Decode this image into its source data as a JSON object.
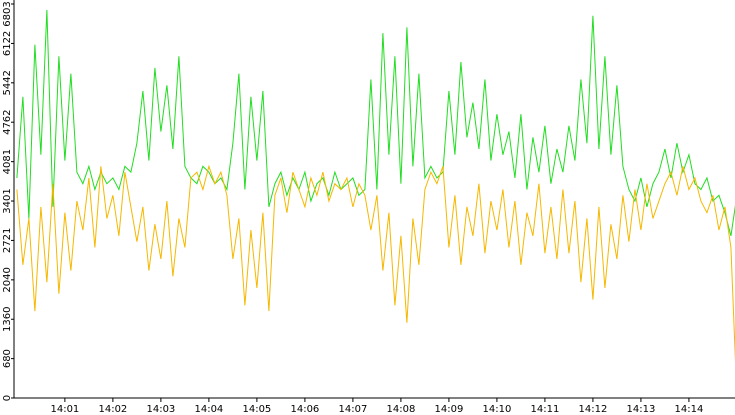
{
  "chart_data": {
    "type": "line",
    "x": [
      840,
      840.125,
      840.25,
      840.375,
      840.5,
      840.625,
      840.75,
      840.875,
      841,
      841.125,
      841.25,
      841.375,
      841.5,
      841.625,
      841.75,
      841.875,
      842,
      842.125,
      842.25,
      842.375,
      842.5,
      842.625,
      842.75,
      842.875,
      843,
      843.125,
      843.25,
      843.375,
      843.5,
      843.625,
      843.75,
      843.875,
      844,
      844.125,
      844.25,
      844.375,
      844.5,
      844.625,
      844.75,
      844.875,
      845,
      845.125,
      845.25,
      845.375,
      845.5,
      845.625,
      845.75,
      845.875,
      846,
      846.125,
      846.25,
      846.375,
      846.5,
      846.625,
      846.75,
      846.875,
      847,
      847.125,
      847.25,
      847.375,
      847.5,
      847.625,
      847.75,
      847.875,
      848,
      848.125,
      848.25,
      848.375,
      848.5,
      848.625,
      848.75,
      848.875,
      849,
      849.125,
      849.25,
      849.375,
      849.5,
      849.625,
      849.75,
      849.875,
      850,
      850.125,
      850.25,
      850.375,
      850.5,
      850.625,
      850.75,
      850.875,
      851,
      851.125,
      851.25,
      851.375,
      851.5,
      851.625,
      851.75,
      851.875,
      852,
      852.125,
      852.25,
      852.375,
      852.5,
      852.625,
      852.75,
      852.875,
      853,
      853.125,
      853.25,
      853.375,
      853.5,
      853.625,
      853.75,
      853.875,
      854,
      854.125,
      854.25,
      854.375,
      854.5,
      854.625,
      854.75,
      854.875,
      855
    ],
    "series": [
      {
        "color": "#22dd22",
        "values": [
          3800,
          5200,
          3100,
          6100,
          4200,
          6700,
          3300,
          5900,
          4100,
          5600,
          3900,
          3700,
          4000,
          3600,
          3900,
          3700,
          3800,
          3600,
          4000,
          3900,
          4400,
          5300,
          4100,
          5700,
          4600,
          5400,
          4300,
          5900,
          4000,
          3800,
          3700,
          4000,
          3900,
          3700,
          3800,
          3600,
          4400,
          5600,
          3600,
          5200,
          4100,
          5300,
          3300,
          3700,
          3900,
          3500,
          3800,
          3600,
          3900,
          3400,
          3700,
          3800,
          3500,
          3900,
          3600,
          3700,
          3800,
          3500,
          3600,
          5500,
          3600,
          6300,
          4200,
          5900,
          3700,
          6400,
          4000,
          5600,
          3800,
          4000,
          3800,
          3900,
          5300,
          4200,
          5800,
          4500,
          5100,
          4300,
          5500,
          4100,
          4900,
          4200,
          4600,
          3800,
          4900,
          3600,
          4500,
          3900,
          4700,
          3700,
          4300,
          3900,
          4700,
          4100,
          5500,
          4400,
          6600,
          4300,
          5900,
          4200,
          5400,
          4000,
          3600,
          3400,
          3800,
          3300,
          3700,
          3900,
          4300,
          3800,
          4400,
          3900,
          4200,
          3700,
          3600,
          3800,
          3400,
          3500,
          3200,
          2800,
          3500
        ]
      },
      {
        "color": "#f5b800",
        "values": [
          3600,
          2300,
          3100,
          1500,
          3300,
          2000,
          3700,
          1800,
          3200,
          2200,
          3400,
          2900,
          3800,
          2600,
          4000,
          3100,
          3500,
          2800,
          3900,
          3300,
          2700,
          3300,
          2200,
          3000,
          2400,
          3400,
          2100,
          3100,
          2600,
          3800,
          3900,
          3600,
          4000,
          3700,
          3900,
          3500,
          2400,
          3100,
          1600,
          2900,
          1900,
          3200,
          1500,
          3500,
          3800,
          3200,
          3900,
          3600,
          3300,
          3800,
          3500,
          3900,
          3400,
          3700,
          3600,
          3800,
          3300,
          3700,
          3500,
          2900,
          3500,
          2200,
          3200,
          1600,
          2800,
          1300,
          3100,
          2300,
          3600,
          3900,
          3700,
          4000,
          2600,
          3500,
          2300,
          3300,
          2800,
          3700,
          2500,
          3400,
          2900,
          3600,
          2600,
          3400,
          2300,
          3200,
          2800,
          3700,
          2500,
          3300,
          2400,
          3600,
          2500,
          3400,
          2000,
          3100,
          1700,
          3300,
          1900,
          3000,
          2400,
          3500,
          2700,
          3600,
          2900,
          3700,
          3100,
          3400,
          3700,
          3900,
          3500,
          4000,
          3600,
          3800,
          3400,
          3200,
          3500,
          2900,
          3300,
          2600,
          0
        ]
      }
    ],
    "xlim": [
      839.94,
      854.96
    ],
    "xticks": [
      {
        "value": 841,
        "label": "14:01"
      },
      {
        "value": 842,
        "label": "14:02"
      },
      {
        "value": 843,
        "label": "14:03"
      },
      {
        "value": 844,
        "label": "14:04"
      },
      {
        "value": 845,
        "label": "14:05"
      },
      {
        "value": 846,
        "label": "14:06"
      },
      {
        "value": 847,
        "label": "14:07"
      },
      {
        "value": 848,
        "label": "14:08"
      },
      {
        "value": 849,
        "label": "14:09"
      },
      {
        "value": 850,
        "label": "14:10"
      },
      {
        "value": 851,
        "label": "14:11"
      },
      {
        "value": 852,
        "label": "14:12"
      },
      {
        "value": 853,
        "label": "14:13"
      },
      {
        "value": 854,
        "label": "14:14"
      }
    ],
    "ylim": [
      0,
      6803
    ],
    "yticks": [
      0,
      680,
      1360,
      2040,
      2721,
      3401,
      4081,
      4762,
      5442,
      6122,
      6803
    ]
  }
}
